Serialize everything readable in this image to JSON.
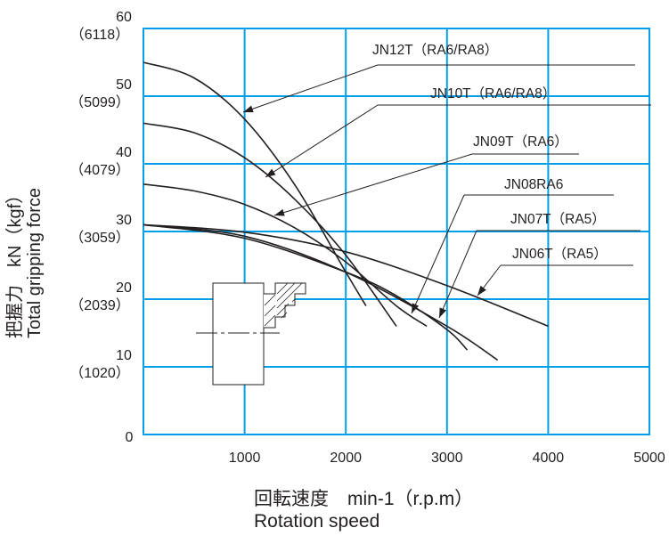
{
  "chart_data": {
    "type": "line",
    "title": "",
    "xlabel_primary": "回転速度　min-1（r.p.m）",
    "xlabel_secondary": "Rotation speed",
    "ylabel_primary": "把握力　kN（kgf）",
    "ylabel_secondary": "Total gripping force",
    "xlim": [
      0,
      5000
    ],
    "ylim": [
      0,
      60
    ],
    "x_ticks": [
      "1000",
      "2000",
      "3000",
      "4000",
      "5000"
    ],
    "y_ticks": [
      {
        "kn": "0",
        "kgf": ""
      },
      {
        "kn": "10",
        "kgf": "（1020）"
      },
      {
        "kn": "20",
        "kgf": "（2039）"
      },
      {
        "kn": "30",
        "kgf": "（3059）"
      },
      {
        "kn": "40",
        "kgf": "（4079）"
      },
      {
        "kn": "50",
        "kgf": "（5099）"
      },
      {
        "kn": "60",
        "kgf": "（6118）"
      }
    ],
    "grid": true,
    "series": [
      {
        "name": "JN12T（RA6/RA8）",
        "x": [
          0,
          500,
          1000,
          1500,
          2000,
          2200
        ],
        "y": [
          55,
          52.7,
          46.6,
          36.8,
          24,
          19
        ]
      },
      {
        "name": "JN10T（RA6/RA8）",
        "x": [
          0,
          500,
          1000,
          1500,
          2000,
          2500
        ],
        "y": [
          46,
          44.6,
          40.9,
          34.7,
          26.5,
          16
        ]
      },
      {
        "name": "JN09T（RA6）",
        "x": [
          0,
          500,
          1000,
          1500,
          2000,
          2500,
          2800
        ],
        "y": [
          37,
          36,
          34,
          30.5,
          25.5,
          19,
          16
        ]
      },
      {
        "name": "JN08RA6",
        "x": [
          0,
          1000,
          2000,
          2500,
          3000,
          3200
        ],
        "y": [
          31,
          29,
          24,
          20.5,
          15.5,
          12.5
        ]
      },
      {
        "name": "JN07T（RA5）",
        "x": [
          0,
          1000,
          2000,
          3000,
          3500
        ],
        "y": [
          31,
          29.3,
          24,
          16,
          11
        ]
      },
      {
        "name": "JN06T（RA5）",
        "x": [
          0,
          1000,
          2000,
          3000,
          4000
        ],
        "y": [
          31,
          29.9,
          27,
          22,
          16
        ]
      }
    ]
  }
}
